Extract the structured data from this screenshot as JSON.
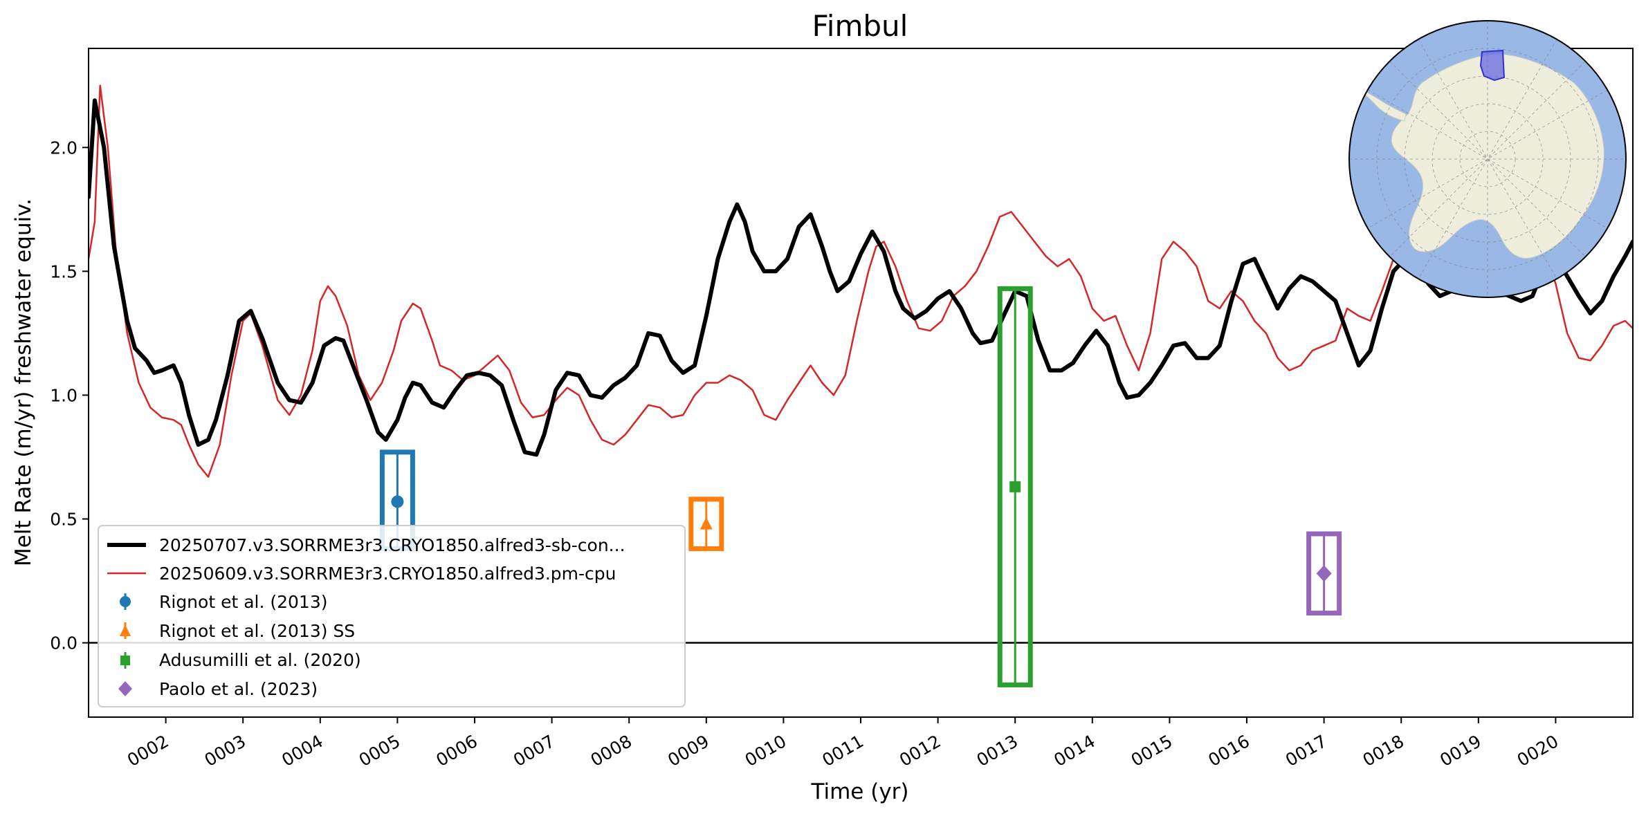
{
  "chart_data": {
    "type": "line",
    "title": "Fimbul",
    "xlabel": "Time (yr)",
    "ylabel": "Melt Rate (m/yr) freshwater equiv.",
    "xlim": [
      1.0,
      21.0
    ],
    "ylim": [
      -0.3,
      2.4
    ],
    "grid": false,
    "legend_position": "lower-left",
    "x_ticks": [
      2,
      3,
      4,
      5,
      6,
      7,
      8,
      9,
      10,
      11,
      12,
      13,
      14,
      15,
      16,
      17,
      18,
      19,
      20
    ],
    "x_tick_labels": [
      "0002",
      "0003",
      "0004",
      "0005",
      "0006",
      "0007",
      "0008",
      "0009",
      "0010",
      "0011",
      "0012",
      "0013",
      "0014",
      "0015",
      "0016",
      "0017",
      "0018",
      "0019",
      "0020"
    ],
    "y_ticks": [
      0.0,
      0.5,
      1.0,
      1.5,
      2.0
    ],
    "y_tick_labels": [
      "0.0",
      "0.5",
      "1.0",
      "1.5",
      "2.0"
    ],
    "zero_line": 0.0,
    "series": [
      {
        "name": "20250707.v3.SORRME3r3.CRYO1850.alfred3-sb-con...",
        "color": "#000000",
        "points": [
          [
            1.0,
            1.8
          ],
          [
            1.08,
            2.19
          ],
          [
            1.2,
            2.0
          ],
          [
            1.33,
            1.6
          ],
          [
            1.5,
            1.3
          ],
          [
            1.6,
            1.19
          ],
          [
            1.75,
            1.14
          ],
          [
            1.85,
            1.09
          ],
          [
            1.95,
            1.1
          ],
          [
            2.1,
            1.12
          ],
          [
            2.2,
            1.05
          ],
          [
            2.3,
            0.92
          ],
          [
            2.42,
            0.8
          ],
          [
            2.55,
            0.82
          ],
          [
            2.65,
            0.9
          ],
          [
            2.8,
            1.08
          ],
          [
            2.95,
            1.3
          ],
          [
            3.1,
            1.34
          ],
          [
            3.25,
            1.23
          ],
          [
            3.45,
            1.05
          ],
          [
            3.6,
            0.98
          ],
          [
            3.75,
            0.97
          ],
          [
            3.9,
            1.05
          ],
          [
            4.05,
            1.2
          ],
          [
            4.2,
            1.23
          ],
          [
            4.3,
            1.22
          ],
          [
            4.45,
            1.1
          ],
          [
            4.6,
            0.98
          ],
          [
            4.75,
            0.85
          ],
          [
            4.85,
            0.82
          ],
          [
            5.0,
            0.9
          ],
          [
            5.1,
            0.99
          ],
          [
            5.2,
            1.05
          ],
          [
            5.3,
            1.04
          ],
          [
            5.45,
            0.97
          ],
          [
            5.6,
            0.95
          ],
          [
            5.75,
            1.02
          ],
          [
            5.9,
            1.08
          ],
          [
            6.05,
            1.09
          ],
          [
            6.2,
            1.08
          ],
          [
            6.35,
            1.04
          ],
          [
            6.5,
            0.9
          ],
          [
            6.65,
            0.77
          ],
          [
            6.8,
            0.76
          ],
          [
            6.9,
            0.84
          ],
          [
            7.05,
            1.02
          ],
          [
            7.2,
            1.09
          ],
          [
            7.35,
            1.08
          ],
          [
            7.5,
            1.0
          ],
          [
            7.65,
            0.99
          ],
          [
            7.8,
            1.04
          ],
          [
            7.95,
            1.07
          ],
          [
            8.1,
            1.12
          ],
          [
            8.25,
            1.25
          ],
          [
            8.4,
            1.24
          ],
          [
            8.55,
            1.14
          ],
          [
            8.7,
            1.09
          ],
          [
            8.85,
            1.12
          ],
          [
            9.0,
            1.32
          ],
          [
            9.15,
            1.55
          ],
          [
            9.3,
            1.7
          ],
          [
            9.4,
            1.77
          ],
          [
            9.5,
            1.7
          ],
          [
            9.6,
            1.58
          ],
          [
            9.75,
            1.5
          ],
          [
            9.9,
            1.5
          ],
          [
            10.05,
            1.55
          ],
          [
            10.2,
            1.68
          ],
          [
            10.35,
            1.73
          ],
          [
            10.5,
            1.6
          ],
          [
            10.6,
            1.5
          ],
          [
            10.7,
            1.42
          ],
          [
            10.85,
            1.46
          ],
          [
            11.0,
            1.57
          ],
          [
            11.15,
            1.66
          ],
          [
            11.3,
            1.58
          ],
          [
            11.45,
            1.42
          ],
          [
            11.55,
            1.35
          ],
          [
            11.7,
            1.31
          ],
          [
            11.85,
            1.34
          ],
          [
            12.0,
            1.39
          ],
          [
            12.15,
            1.42
          ],
          [
            12.3,
            1.35
          ],
          [
            12.45,
            1.25
          ],
          [
            12.55,
            1.21
          ],
          [
            12.7,
            1.22
          ],
          [
            12.85,
            1.32
          ],
          [
            13.0,
            1.42
          ],
          [
            13.15,
            1.4
          ],
          [
            13.3,
            1.22
          ],
          [
            13.45,
            1.1
          ],
          [
            13.6,
            1.1
          ],
          [
            13.75,
            1.13
          ],
          [
            13.9,
            1.2
          ],
          [
            14.05,
            1.26
          ],
          [
            14.2,
            1.2
          ],
          [
            14.35,
            1.05
          ],
          [
            14.45,
            0.99
          ],
          [
            14.6,
            1.0
          ],
          [
            14.75,
            1.05
          ],
          [
            14.9,
            1.12
          ],
          [
            15.05,
            1.2
          ],
          [
            15.2,
            1.21
          ],
          [
            15.35,
            1.15
          ],
          [
            15.5,
            1.15
          ],
          [
            15.65,
            1.2
          ],
          [
            15.8,
            1.38
          ],
          [
            15.95,
            1.53
          ],
          [
            16.1,
            1.55
          ],
          [
            16.25,
            1.45
          ],
          [
            16.4,
            1.35
          ],
          [
            16.55,
            1.43
          ],
          [
            16.7,
            1.48
          ],
          [
            16.85,
            1.46
          ],
          [
            17.0,
            1.42
          ],
          [
            17.15,
            1.38
          ],
          [
            17.3,
            1.25
          ],
          [
            17.45,
            1.12
          ],
          [
            17.6,
            1.18
          ],
          [
            17.75,
            1.35
          ],
          [
            17.9,
            1.5
          ],
          [
            18.05,
            1.55
          ],
          [
            18.2,
            1.55
          ],
          [
            18.35,
            1.45
          ],
          [
            18.5,
            1.4
          ],
          [
            18.65,
            1.42
          ],
          [
            18.8,
            1.46
          ],
          [
            18.95,
            1.5
          ],
          [
            19.1,
            1.45
          ],
          [
            19.25,
            1.42
          ],
          [
            19.4,
            1.4
          ],
          [
            19.55,
            1.38
          ],
          [
            19.7,
            1.4
          ],
          [
            19.85,
            1.52
          ],
          [
            20.0,
            1.56
          ],
          [
            20.15,
            1.48
          ],
          [
            20.3,
            1.4
          ],
          [
            20.45,
            1.33
          ],
          [
            20.6,
            1.38
          ],
          [
            20.75,
            1.48
          ],
          [
            20.9,
            1.56
          ],
          [
            21.0,
            1.62
          ]
        ]
      },
      {
        "name": "20250609.v3.SORRME3r3.CRYO1850.alfred3.pm-cpu",
        "color": "#d62728",
        "points": [
          [
            1.0,
            1.55
          ],
          [
            1.08,
            1.7
          ],
          [
            1.15,
            2.25
          ],
          [
            1.25,
            2.0
          ],
          [
            1.35,
            1.6
          ],
          [
            1.5,
            1.25
          ],
          [
            1.65,
            1.05
          ],
          [
            1.8,
            0.95
          ],
          [
            1.95,
            0.91
          ],
          [
            2.1,
            0.9
          ],
          [
            2.2,
            0.88
          ],
          [
            2.3,
            0.8
          ],
          [
            2.42,
            0.72
          ],
          [
            2.55,
            0.67
          ],
          [
            2.7,
            0.8
          ],
          [
            2.85,
            1.08
          ],
          [
            3.0,
            1.3
          ],
          [
            3.1,
            1.33
          ],
          [
            3.25,
            1.2
          ],
          [
            3.45,
            0.98
          ],
          [
            3.6,
            0.92
          ],
          [
            3.75,
            1.0
          ],
          [
            3.9,
            1.18
          ],
          [
            4.0,
            1.38
          ],
          [
            4.1,
            1.44
          ],
          [
            4.2,
            1.4
          ],
          [
            4.35,
            1.28
          ],
          [
            4.5,
            1.08
          ],
          [
            4.65,
            0.98
          ],
          [
            4.8,
            1.05
          ],
          [
            4.95,
            1.18
          ],
          [
            5.05,
            1.3
          ],
          [
            5.2,
            1.37
          ],
          [
            5.3,
            1.35
          ],
          [
            5.45,
            1.22
          ],
          [
            5.55,
            1.12
          ],
          [
            5.7,
            1.1
          ],
          [
            5.85,
            1.06
          ],
          [
            6.0,
            1.08
          ],
          [
            6.15,
            1.12
          ],
          [
            6.3,
            1.16
          ],
          [
            6.45,
            1.1
          ],
          [
            6.6,
            0.97
          ],
          [
            6.75,
            0.91
          ],
          [
            6.9,
            0.92
          ],
          [
            7.05,
            0.98
          ],
          [
            7.2,
            1.03
          ],
          [
            7.35,
            1.0
          ],
          [
            7.5,
            0.9
          ],
          [
            7.65,
            0.82
          ],
          [
            7.8,
            0.8
          ],
          [
            7.95,
            0.84
          ],
          [
            8.1,
            0.9
          ],
          [
            8.25,
            0.96
          ],
          [
            8.4,
            0.95
          ],
          [
            8.55,
            0.91
          ],
          [
            8.7,
            0.92
          ],
          [
            8.85,
            1.0
          ],
          [
            9.0,
            1.05
          ],
          [
            9.15,
            1.05
          ],
          [
            9.3,
            1.08
          ],
          [
            9.45,
            1.06
          ],
          [
            9.6,
            1.02
          ],
          [
            9.75,
            0.92
          ],
          [
            9.9,
            0.9
          ],
          [
            10.05,
            0.98
          ],
          [
            10.2,
            1.05
          ],
          [
            10.35,
            1.12
          ],
          [
            10.5,
            1.05
          ],
          [
            10.65,
            1.0
          ],
          [
            10.8,
            1.08
          ],
          [
            10.95,
            1.3
          ],
          [
            11.1,
            1.5
          ],
          [
            11.2,
            1.6
          ],
          [
            11.3,
            1.62
          ],
          [
            11.45,
            1.52
          ],
          [
            11.6,
            1.38
          ],
          [
            11.75,
            1.27
          ],
          [
            11.9,
            1.26
          ],
          [
            12.05,
            1.3
          ],
          [
            12.2,
            1.4
          ],
          [
            12.35,
            1.44
          ],
          [
            12.5,
            1.5
          ],
          [
            12.65,
            1.6
          ],
          [
            12.8,
            1.72
          ],
          [
            12.95,
            1.74
          ],
          [
            13.1,
            1.68
          ],
          [
            13.25,
            1.62
          ],
          [
            13.4,
            1.56
          ],
          [
            13.55,
            1.52
          ],
          [
            13.7,
            1.55
          ],
          [
            13.85,
            1.48
          ],
          [
            14.0,
            1.35
          ],
          [
            14.15,
            1.3
          ],
          [
            14.3,
            1.32
          ],
          [
            14.45,
            1.2
          ],
          [
            14.6,
            1.1
          ],
          [
            14.75,
            1.25
          ],
          [
            14.9,
            1.55
          ],
          [
            15.05,
            1.62
          ],
          [
            15.2,
            1.58
          ],
          [
            15.35,
            1.52
          ],
          [
            15.5,
            1.38
          ],
          [
            15.65,
            1.35
          ],
          [
            15.8,
            1.42
          ],
          [
            15.95,
            1.38
          ],
          [
            16.1,
            1.3
          ],
          [
            16.25,
            1.25
          ],
          [
            16.4,
            1.15
          ],
          [
            16.55,
            1.1
          ],
          [
            16.7,
            1.12
          ],
          [
            16.85,
            1.18
          ],
          [
            17.0,
            1.2
          ],
          [
            17.15,
            1.22
          ],
          [
            17.3,
            1.35
          ],
          [
            17.45,
            1.32
          ],
          [
            17.6,
            1.3
          ],
          [
            17.75,
            1.42
          ],
          [
            17.9,
            1.55
          ],
          [
            18.05,
            1.65
          ],
          [
            18.2,
            1.75
          ],
          [
            18.35,
            1.62
          ],
          [
            18.5,
            1.5
          ],
          [
            18.65,
            1.45
          ],
          [
            18.8,
            1.55
          ],
          [
            18.95,
            1.7
          ],
          [
            19.1,
            1.72
          ],
          [
            19.25,
            1.6
          ],
          [
            19.4,
            1.5
          ],
          [
            19.55,
            1.55
          ],
          [
            19.7,
            1.62
          ],
          [
            19.85,
            1.58
          ],
          [
            20.0,
            1.45
          ],
          [
            20.15,
            1.25
          ],
          [
            20.3,
            1.15
          ],
          [
            20.45,
            1.14
          ],
          [
            20.6,
            1.2
          ],
          [
            20.75,
            1.28
          ],
          [
            20.9,
            1.3
          ],
          [
            21.0,
            1.27
          ]
        ]
      }
    ],
    "observations": [
      {
        "name": "Rignot et al. (2013)",
        "x": 5.0,
        "y": 0.57,
        "ymin": 0.38,
        "ymax": 0.77,
        "color": "#1f77b4",
        "marker": "circle"
      },
      {
        "name": "Rignot et al. (2013) SS",
        "x": 9.0,
        "y": 0.48,
        "ymin": 0.38,
        "ymax": 0.58,
        "color": "#ff7f0e",
        "marker": "triangle"
      },
      {
        "name": "Adusumilli et al. (2020)",
        "x": 13.0,
        "y": 0.63,
        "ymin": -0.17,
        "ymax": 1.43,
        "color": "#2ca02c",
        "marker": "square"
      },
      {
        "name": "Paolo et al. (2023)",
        "x": 17.0,
        "y": 0.28,
        "ymin": 0.12,
        "ymax": 0.44,
        "color": "#9467bd",
        "marker": "diamond"
      }
    ]
  },
  "inset_map": {
    "description_icon": "antarctica-polar-map-icon",
    "ocean_color": "#9ab8e6",
    "land_color": "#efeedd",
    "region_color": "#6f6fe0"
  }
}
